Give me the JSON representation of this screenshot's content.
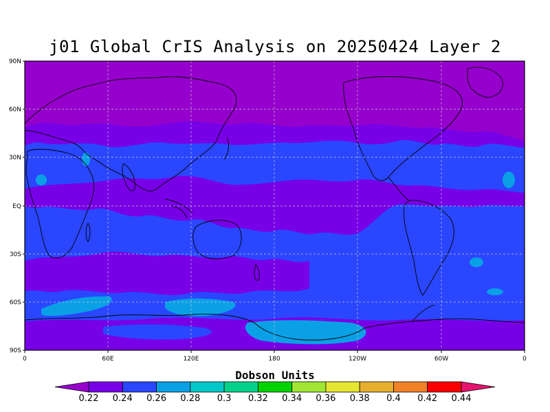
{
  "title": "j01 Global CrIS Analysis on 20250424 Layer 2",
  "lat_labels": [
    "90N",
    "60N",
    "30N",
    "EQ",
    "30S",
    "60S",
    "90S"
  ],
  "lon_labels": [
    "0",
    "60E",
    "120E",
    "180",
    "120W",
    "60W",
    "0"
  ],
  "colorbar": {
    "units": "Dobson Units",
    "ticks": [
      "0.22",
      "0.24",
      "0.26",
      "0.28",
      "0.3",
      "0.32",
      "0.34",
      "0.36",
      "0.38",
      "0.4",
      "0.42",
      "0.44"
    ],
    "colors": [
      "#9600cc",
      "#7800e6",
      "#2a46ff",
      "#0aa0e6",
      "#00c8c8",
      "#00d28c",
      "#00d200",
      "#a0e632",
      "#e6e632",
      "#e6af2d",
      "#f08228",
      "#fa0000",
      "#e6136e"
    ]
  },
  "map_colors": {
    "polar_high": "#9600cc",
    "low_band": "#7800e6",
    "mid": "#2a46ff",
    "higher": "#0aa0e6"
  }
}
